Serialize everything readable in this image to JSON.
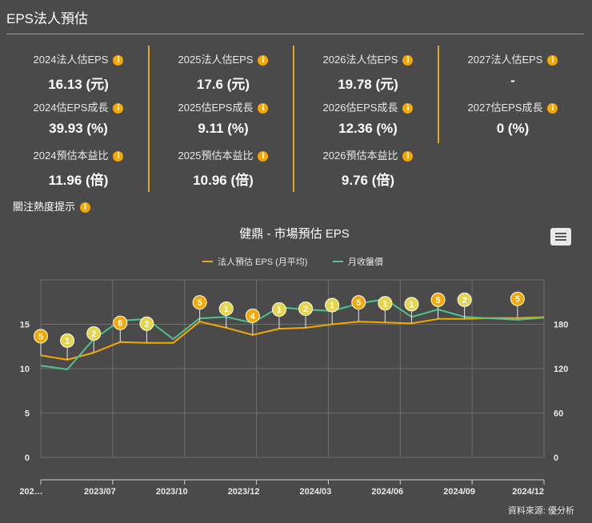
{
  "header": {
    "title": "EPS法人預估"
  },
  "metrics": [
    [
      {
        "label": "2024法人估EPS",
        "value": "16.13 (元)"
      },
      {
        "label": "2024估EPS成長",
        "value": "39.93 (%)"
      },
      {
        "label": "2024預估本益比",
        "value": "11.96 (倍)"
      }
    ],
    [
      {
        "label": "2025法人估EPS",
        "value": "17.6 (元)"
      },
      {
        "label": "2025估EPS成長",
        "value": "9.11 (%)"
      },
      {
        "label": "2025預估本益比",
        "value": "10.96 (倍)"
      }
    ],
    [
      {
        "label": "2026法人估EPS",
        "value": "19.78 (元)"
      },
      {
        "label": "2026估EPS成長",
        "value": "12.36 (%)"
      },
      {
        "label": "2026預估本益比",
        "value": "9.76 (倍)"
      }
    ],
    [
      {
        "label": "2027法人估EPS",
        "value": "-"
      },
      {
        "label": "2027估EPS成長",
        "value": "0 (%)"
      }
    ]
  ],
  "info_glyph": "i",
  "watch": {
    "label": "關注熱度提示"
  },
  "chart_data": {
    "type": "line",
    "title": "健鼎 - 市場預估 EPS",
    "source": "資料來源: 優分析",
    "x_ticks": [
      "202…",
      "2023/07",
      "2023/10",
      "2023/12",
      "2024/03",
      "2024/06",
      "2024/09",
      "2024/12"
    ],
    "y_left": {
      "ticks": [
        0,
        5,
        10,
        15
      ],
      "range": [
        0,
        20
      ]
    },
    "y_right": {
      "ticks": [
        0,
        60,
        120,
        180
      ],
      "range": [
        0,
        240
      ]
    },
    "series": [
      {
        "name": "法人預估 EPS (月平均)",
        "color": "#f5a800",
        "axis": "left",
        "values": [
          11.5,
          11.0,
          11.8,
          13.0,
          12.9,
          12.9,
          15.3,
          14.6,
          13.8,
          14.5,
          14.6,
          15.0,
          15.3,
          15.2,
          15.1,
          15.6,
          15.6,
          15.7,
          15.7,
          15.8
        ]
      },
      {
        "name": "月收盤價",
        "color": "#4fc48e",
        "axis": "right",
        "values": [
          124,
          119,
          160,
          185,
          187,
          160,
          188,
          190,
          182,
          203,
          200,
          198,
          208,
          214,
          190,
          200,
          190,
          188,
          186,
          189
        ]
      }
    ],
    "markers": [
      5,
      1,
      2,
      6,
      2,
      null,
      5,
      1,
      4,
      1,
      2,
      1,
      5,
      1,
      1,
      5,
      2,
      null,
      5,
      null
    ],
    "marker_colors": {
      "1": "#e6d44a",
      "2": "#e6d44a",
      "4": "#f5a800",
      "5": "#f5a800",
      "6": "#f5a800"
    }
  }
}
